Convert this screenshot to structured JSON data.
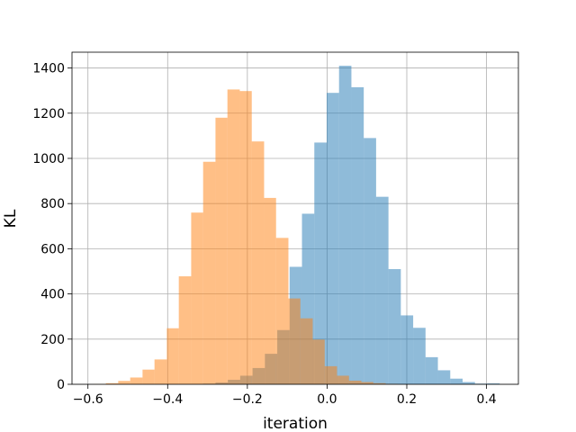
{
  "chart_data": {
    "type": "bar",
    "subtype": "overlapping-histogram",
    "xlabel": "iteration",
    "ylabel": "KL",
    "xlim": [
      -0.64,
      0.48
    ],
    "ylim": [
      0,
      1470
    ],
    "xticks": [
      -0.6,
      -0.4,
      -0.2,
      0.0,
      0.2,
      0.4
    ],
    "xtick_labels": [
      "−0.6",
      "−0.4",
      "−0.2",
      "0.0",
      "0.2",
      "0.4"
    ],
    "yticks": [
      0,
      200,
      400,
      600,
      800,
      1000,
      1200,
      1400
    ],
    "grid": true,
    "colors": {
      "series_a": "#1f77b4",
      "series_b": "#ff7f0e",
      "grid": "#b0b0b0",
      "axes": "#000000"
    },
    "series": [
      {
        "color": "#1f77b4",
        "opacity": 0.5,
        "bins": [
          [
            -0.342,
            -0.311,
            1
          ],
          [
            -0.311,
            -0.28,
            3
          ],
          [
            -0.28,
            -0.249,
            8
          ],
          [
            -0.249,
            -0.218,
            20
          ],
          [
            -0.218,
            -0.187,
            38
          ],
          [
            -0.187,
            -0.156,
            72
          ],
          [
            -0.156,
            -0.125,
            135
          ],
          [
            -0.125,
            -0.094,
            240
          ],
          [
            -0.094,
            -0.063,
            520
          ],
          [
            -0.063,
            -0.032,
            755
          ],
          [
            -0.032,
            -0.001,
            1070
          ],
          [
            -0.001,
            0.03,
            1290
          ],
          [
            0.03,
            0.061,
            1410
          ],
          [
            0.061,
            0.092,
            1315
          ],
          [
            0.092,
            0.123,
            1090
          ],
          [
            0.123,
            0.154,
            830
          ],
          [
            0.154,
            0.185,
            510
          ],
          [
            0.185,
            0.216,
            305
          ],
          [
            0.216,
            0.247,
            250
          ],
          [
            0.247,
            0.278,
            120
          ],
          [
            0.278,
            0.309,
            62
          ],
          [
            0.309,
            0.34,
            25
          ],
          [
            0.34,
            0.371,
            10
          ],
          [
            0.371,
            0.402,
            3
          ],
          [
            0.402,
            0.433,
            4
          ]
        ]
      },
      {
        "color": "#ff7f0e",
        "opacity": 0.5,
        "bins": [
          [
            -0.585,
            -0.555,
            1
          ],
          [
            -0.555,
            -0.524,
            5
          ],
          [
            -0.524,
            -0.494,
            15
          ],
          [
            -0.494,
            -0.463,
            30
          ],
          [
            -0.463,
            -0.433,
            65
          ],
          [
            -0.433,
            -0.402,
            110
          ],
          [
            -0.402,
            -0.372,
            248
          ],
          [
            -0.372,
            -0.341,
            478
          ],
          [
            -0.341,
            -0.311,
            760
          ],
          [
            -0.311,
            -0.28,
            985
          ],
          [
            -0.28,
            -0.25,
            1180
          ],
          [
            -0.25,
            -0.219,
            1305
          ],
          [
            -0.219,
            -0.189,
            1298
          ],
          [
            -0.189,
            -0.158,
            1075
          ],
          [
            -0.158,
            -0.128,
            825
          ],
          [
            -0.128,
            -0.097,
            648
          ],
          [
            -0.097,
            -0.067,
            380
          ],
          [
            -0.067,
            -0.036,
            292
          ],
          [
            -0.036,
            -0.006,
            198
          ],
          [
            -0.006,
            0.025,
            80
          ],
          [
            0.025,
            0.055,
            38
          ],
          [
            0.055,
            0.086,
            16
          ],
          [
            0.086,
            0.116,
            10
          ],
          [
            0.116,
            0.147,
            5
          ],
          [
            0.147,
            0.177,
            2
          ]
        ]
      }
    ]
  }
}
